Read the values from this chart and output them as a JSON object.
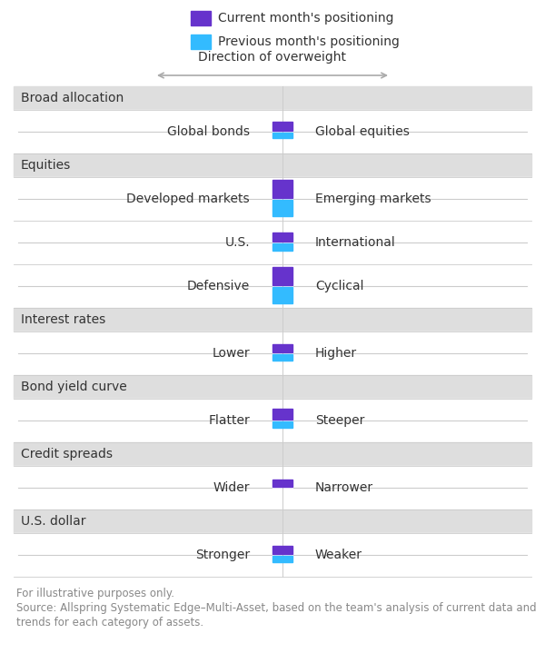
{
  "legend_current_label": "Current month's positioning",
  "legend_previous_label": "Previous month's positioning",
  "direction_label": "Direction of overweight",
  "current_color": "#6633CC",
  "previous_color": "#33BBFF",
  "sections": [
    {
      "header": "Broad allocation",
      "rows": [
        {
          "left": "Global bonds",
          "right": "Global equities",
          "cur": 1.0,
          "prev": 0.6
        }
      ]
    },
    {
      "header": "Equities",
      "rows": [
        {
          "left": "Developed markets",
          "right": "Emerging markets",
          "cur": 2.0,
          "prev": 1.8
        },
        {
          "left": "U.S.",
          "right": "International",
          "cur": 1.0,
          "prev": 0.8
        },
        {
          "left": "Defensive",
          "right": "Cyclical",
          "cur": 2.0,
          "prev": 1.8
        }
      ]
    },
    {
      "header": "Interest rates",
      "rows": [
        {
          "left": "Lower",
          "right": "Higher",
          "cur": 0.9,
          "prev": 0.7
        }
      ]
    },
    {
      "header": "Bond yield curve",
      "rows": [
        {
          "left": "Flatter",
          "right": "Steeper",
          "cur": 1.2,
          "prev": 0.7
        }
      ]
    },
    {
      "header": "Credit spreads",
      "rows": [
        {
          "left": "Wider",
          "right": "Narrower",
          "cur": 0.8,
          "prev": 0.0
        }
      ]
    },
    {
      "header": "U.S. dollar",
      "rows": [
        {
          "left": "Stronger",
          "right": "Weaker",
          "cur": 0.9,
          "prev": 0.7
        }
      ]
    }
  ],
  "footer_lines": [
    "For illustrative purposes only.",
    "Source: Allspring Systematic Edge–Multi-Asset, based on the team's analysis of current data and",
    "trends for each category of assets."
  ],
  "bg_header_color": "#DEDEDE",
  "text_color": "#333333",
  "footer_color": "#888888",
  "line_color": "#CCCCCC",
  "center_line_color": "#AAAAAA"
}
